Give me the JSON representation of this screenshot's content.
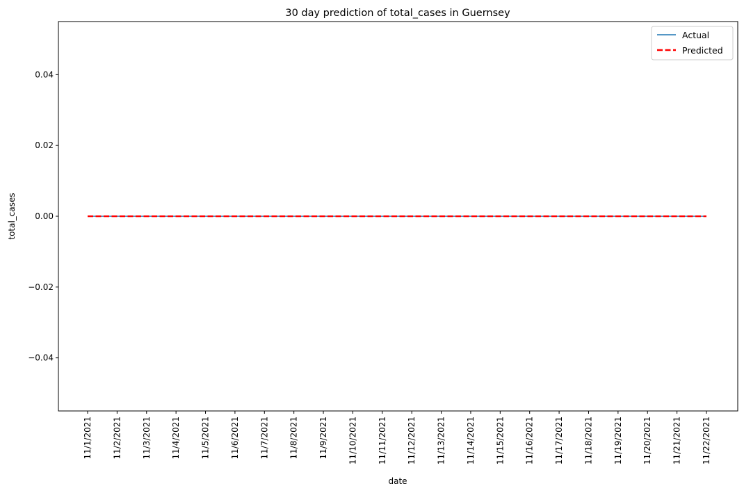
{
  "chart_data": {
    "type": "line",
    "title": "30 day prediction of total_cases in Guernsey",
    "xlabel": "date",
    "ylabel": "total_cases",
    "x": [
      "11/1/2021",
      "11/2/2021",
      "11/3/2021",
      "11/4/2021",
      "11/5/2021",
      "11/6/2021",
      "11/7/2021",
      "11/8/2021",
      "11/9/2021",
      "11/10/2021",
      "11/11/2021",
      "11/12/2021",
      "11/13/2021",
      "11/14/2021",
      "11/15/2021",
      "11/16/2021",
      "11/17/2021",
      "11/18/2021",
      "11/19/2021",
      "11/20/2021",
      "11/21/2021",
      "11/22/2021"
    ],
    "ylim": [
      -0.055,
      0.055
    ],
    "yticks": [
      0.04,
      0.02,
      0.0,
      -0.02,
      -0.04
    ],
    "ytick_labels": [
      "0.04",
      "0.02",
      "0.00",
      "−0.02",
      "−0.04"
    ],
    "series": [
      {
        "name": "Actual",
        "color": "#1f77b4",
        "style": "solid",
        "values": [
          0,
          0,
          0,
          0,
          0,
          0,
          0,
          0,
          0,
          0,
          0,
          0,
          0,
          0,
          0,
          0,
          0,
          0,
          0,
          0,
          0,
          0
        ]
      },
      {
        "name": "Predicted",
        "color": "#ff0000",
        "style": "dashed",
        "values": [
          0,
          0,
          0,
          0,
          0,
          0,
          0,
          0,
          0,
          0,
          0,
          0,
          0,
          0,
          0,
          0,
          0,
          0,
          0,
          0,
          0,
          0
        ]
      }
    ],
    "legend_position": "top-right",
    "grid": false
  }
}
